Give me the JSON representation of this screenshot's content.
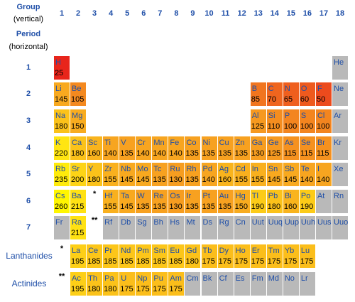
{
  "header": {
    "group_title": "Group",
    "group_note": "(vertical)",
    "period_title": "Period",
    "period_note": "(horizontal)"
  },
  "groups": [
    1,
    2,
    3,
    4,
    5,
    6,
    7,
    8,
    9,
    10,
    11,
    12,
    13,
    14,
    15,
    16,
    17,
    18
  ],
  "periods": [
    {
      "label": 1,
      "cells": [
        {
          "symbol": "H",
          "value": 25
        },
        null,
        null,
        null,
        null,
        null,
        null,
        null,
        null,
        null,
        null,
        null,
        null,
        null,
        null,
        null,
        null,
        {
          "symbol": "He"
        }
      ]
    },
    {
      "label": 2,
      "cells": [
        {
          "symbol": "Li",
          "value": 145
        },
        {
          "symbol": "Be",
          "value": 105
        },
        null,
        null,
        null,
        null,
        null,
        null,
        null,
        null,
        null,
        null,
        {
          "symbol": "B",
          "value": 85
        },
        {
          "symbol": "C",
          "value": 70
        },
        {
          "symbol": "N",
          "value": 65
        },
        {
          "symbol": "O",
          "value": 60
        },
        {
          "symbol": "F",
          "value": 50
        },
        {
          "symbol": "Ne"
        }
      ]
    },
    {
      "label": 3,
      "cells": [
        {
          "symbol": "Na",
          "value": 180
        },
        {
          "symbol": "Mg",
          "value": 150
        },
        null,
        null,
        null,
        null,
        null,
        null,
        null,
        null,
        null,
        null,
        {
          "symbol": "Al",
          "value": 125
        },
        {
          "symbol": "Si",
          "value": 110
        },
        {
          "symbol": "P",
          "value": 100
        },
        {
          "symbol": "S",
          "value": 100
        },
        {
          "symbol": "Cl",
          "value": 100
        },
        {
          "symbol": "Ar"
        }
      ]
    },
    {
      "label": 4,
      "cells": [
        {
          "symbol": "K",
          "value": 220
        },
        {
          "symbol": "Ca",
          "value": 180
        },
        {
          "symbol": "Sc",
          "value": 160
        },
        {
          "symbol": "Ti",
          "value": 140
        },
        {
          "symbol": "V",
          "value": 135
        },
        {
          "symbol": "Cr",
          "value": 140
        },
        {
          "symbol": "Mn",
          "value": 140
        },
        {
          "symbol": "Fe",
          "value": 140
        },
        {
          "symbol": "Co",
          "value": 135
        },
        {
          "symbol": "Ni",
          "value": 135
        },
        {
          "symbol": "Cu",
          "value": 135
        },
        {
          "symbol": "Zn",
          "value": 135
        },
        {
          "symbol": "Ga",
          "value": 130
        },
        {
          "symbol": "Ge",
          "value": 125
        },
        {
          "symbol": "As",
          "value": 115
        },
        {
          "symbol": "Se",
          "value": 115
        },
        {
          "symbol": "Br",
          "value": 115
        },
        {
          "symbol": "Kr"
        }
      ]
    },
    {
      "label": 5,
      "cells": [
        {
          "symbol": "Rb",
          "value": 235
        },
        {
          "symbol": "Sr",
          "value": 200
        },
        {
          "symbol": "Y",
          "value": 180
        },
        {
          "symbol": "Zr",
          "value": 155
        },
        {
          "symbol": "Nb",
          "value": 145
        },
        {
          "symbol": "Mo",
          "value": 145
        },
        {
          "symbol": "Tc",
          "value": 135
        },
        {
          "symbol": "Ru",
          "value": 130
        },
        {
          "symbol": "Rh",
          "value": 135
        },
        {
          "symbol": "Pd",
          "value": 140
        },
        {
          "symbol": "Ag",
          "value": 160
        },
        {
          "symbol": "Cd",
          "value": 155
        },
        {
          "symbol": "In",
          "value": 155
        },
        {
          "symbol": "Sn",
          "value": 145
        },
        {
          "symbol": "Sb",
          "value": 145
        },
        {
          "symbol": "Te",
          "value": 140
        },
        {
          "symbol": "I",
          "value": 140
        },
        {
          "symbol": "Xe"
        }
      ]
    },
    {
      "label": 6,
      "cells": [
        {
          "symbol": "Cs",
          "value": 260
        },
        {
          "symbol": "Ba",
          "value": 215
        },
        "*",
        {
          "symbol": "Hf",
          "value": 155
        },
        {
          "symbol": "Ta",
          "value": 145
        },
        {
          "symbol": "W",
          "value": 135
        },
        {
          "symbol": "Re",
          "value": 135
        },
        {
          "symbol": "Os",
          "value": 130
        },
        {
          "symbol": "Ir",
          "value": 135
        },
        {
          "symbol": "Pt",
          "value": 135
        },
        {
          "symbol": "Au",
          "value": 135
        },
        {
          "symbol": "Hg",
          "value": 150
        },
        {
          "symbol": "Tl",
          "value": 190
        },
        {
          "symbol": "Pb",
          "value": 180
        },
        {
          "symbol": "Bi",
          "value": 160
        },
        {
          "symbol": "Po",
          "value": 190
        },
        {
          "symbol": "At"
        },
        {
          "symbol": "Rn"
        }
      ]
    },
    {
      "label": 7,
      "cells": [
        {
          "symbol": "Fr"
        },
        {
          "symbol": "Ra",
          "value": 215
        },
        "**",
        {
          "symbol": "Rf"
        },
        {
          "symbol": "Db"
        },
        {
          "symbol": "Sg"
        },
        {
          "symbol": "Bh"
        },
        {
          "symbol": "Hs"
        },
        {
          "symbol": "Mt"
        },
        {
          "symbol": "Ds"
        },
        {
          "symbol": "Rg"
        },
        {
          "symbol": "Cn"
        },
        {
          "symbol": "Uut"
        },
        {
          "symbol": "Uuq"
        },
        {
          "symbol": "Uup"
        },
        {
          "symbol": "Uuh"
        },
        {
          "symbol": "Uus"
        },
        {
          "symbol": "Uuo"
        }
      ]
    }
  ],
  "series": [
    {
      "label": "Lanthanides",
      "cells": [
        "*",
        {
          "symbol": "La",
          "value": 195
        },
        {
          "symbol": "Ce",
          "value": 185
        },
        {
          "symbol": "Pr",
          "value": 185
        },
        {
          "symbol": "Nd",
          "value": 185
        },
        {
          "symbol": "Pm",
          "value": 185
        },
        {
          "symbol": "Sm",
          "value": 185
        },
        {
          "symbol": "Eu",
          "value": 185
        },
        {
          "symbol": "Gd",
          "value": 180
        },
        {
          "symbol": "Tb",
          "value": 175
        },
        {
          "symbol": "Dy",
          "value": 175
        },
        {
          "symbol": "Ho",
          "value": 175
        },
        {
          "symbol": "Er",
          "value": 175
        },
        {
          "symbol": "Tm",
          "value": 175
        },
        {
          "symbol": "Yb",
          "value": 175
        },
        {
          "symbol": "Lu",
          "value": 175
        }
      ]
    },
    {
      "label": "Actinides",
      "cells": [
        "**",
        {
          "symbol": "Ac",
          "value": 195
        },
        {
          "symbol": "Th",
          "value": 180
        },
        {
          "symbol": "Pa",
          "value": 180
        },
        {
          "symbol": "U",
          "value": 175
        },
        {
          "symbol": "Np",
          "value": 175
        },
        {
          "symbol": "Pu",
          "value": 175
        },
        {
          "symbol": "Am",
          "value": 175
        },
        {
          "symbol": "Cm"
        },
        {
          "symbol": "Bk"
        },
        {
          "symbol": "Cf"
        },
        {
          "symbol": "Es"
        },
        {
          "symbol": "Fm"
        },
        {
          "symbol": "Md"
        },
        {
          "symbol": "No"
        },
        {
          "symbol": "Lr"
        }
      ]
    }
  ]
}
